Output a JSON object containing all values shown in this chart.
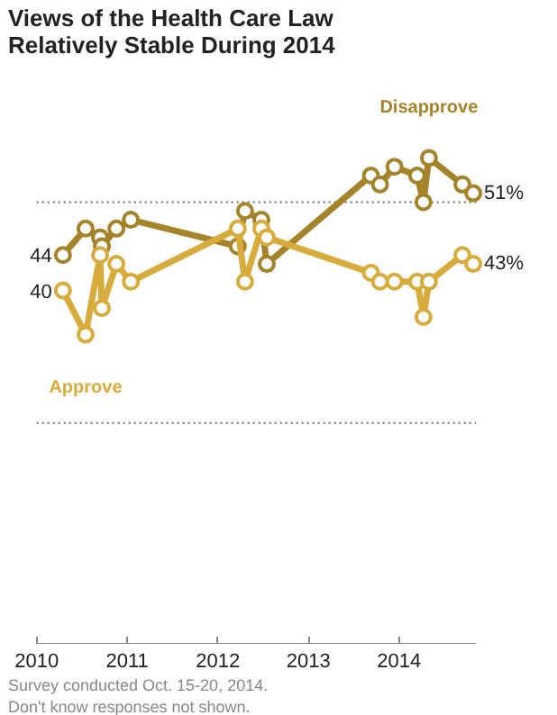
{
  "chart_data": {
    "type": "line",
    "title": "Views of the Health Care Law Relatively Stable During 2014",
    "x": [
      2010.29,
      2010.54,
      2010.7,
      2010.72,
      2010.88,
      2011.04,
      2012.22,
      2012.3,
      2012.48,
      2012.54,
      2013.69,
      2013.79,
      2013.95,
      2014.2,
      2014.27,
      2014.33,
      2014.7,
      2014.82
    ],
    "series": [
      {
        "name": "Disapprove",
        "color": "#a4832a",
        "values": [
          44,
          47,
          46,
          45,
          47,
          48,
          45,
          49,
          48,
          43,
          53,
          52,
          54,
          53,
          50,
          55,
          52,
          51
        ],
        "value_labels": [
          "44",
          null,
          null,
          null,
          null,
          null,
          null,
          null,
          null,
          null,
          null,
          null,
          null,
          null,
          null,
          null,
          null,
          "51%"
        ]
      },
      {
        "name": "Approve",
        "color": "#d8ac3c",
        "values": [
          40,
          35,
          44,
          38,
          43,
          41,
          47,
          41,
          47,
          46,
          42,
          41,
          41,
          41,
          37,
          41,
          44,
          43
        ],
        "value_labels": [
          "40",
          null,
          null,
          null,
          null,
          null,
          null,
          null,
          null,
          null,
          null,
          null,
          null,
          null,
          null,
          null,
          null,
          "43%"
        ]
      }
    ],
    "xlim": [
      2010,
      2014.85
    ],
    "xticks": [
      2010,
      2011,
      2012,
      2013,
      2014
    ],
    "ref_lines": [
      {
        "axis": "y",
        "value": 50,
        "color": "#666666",
        "line_style": "dotted"
      },
      {
        "axis": "y",
        "value": 25,
        "color": "#666666",
        "line_style": "dotted"
      }
    ],
    "marker": "circle",
    "line_style": "solid",
    "annotations": [
      "Survey conducted Oct. 15-20, 2014.",
      "Don't know responses not shown."
    ]
  }
}
